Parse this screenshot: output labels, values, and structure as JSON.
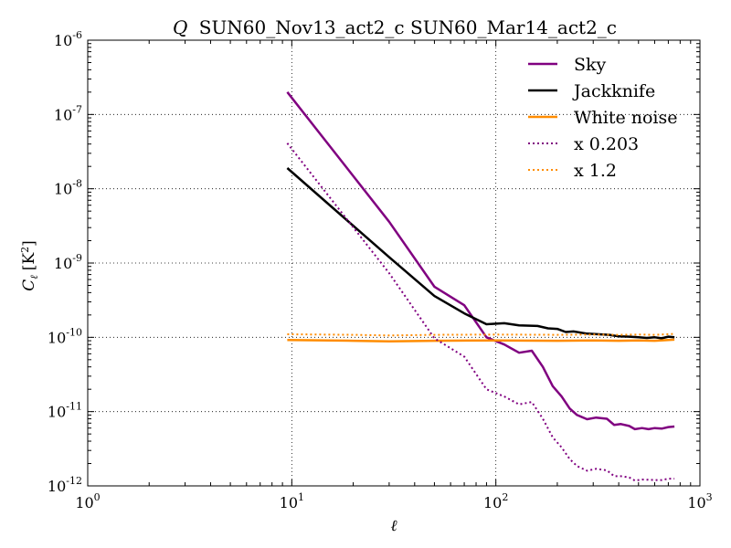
{
  "chart_data": {
    "type": "line",
    "title_symbol": "Q",
    "title_text": "SUN60_Nov13_act2_c SUN60_Mar14_act2_c",
    "xlabel": "ℓ",
    "ylabel_symbol": "C",
    "ylabel_sub": "ℓ",
    "ylabel_unit": "[K",
    "ylabel_unit_sup": "2",
    "ylabel_unit_close": "]",
    "xscale": "log",
    "yscale": "log",
    "xlim": [
      1,
      1000
    ],
    "ylim": [
      1e-12,
      1e-06
    ],
    "grid": true,
    "legend_position": "top-right",
    "x_ticks": [
      {
        "value": 1,
        "base": "10",
        "exp": "0"
      },
      {
        "value": 10,
        "base": "10",
        "exp": "1"
      },
      {
        "value": 100,
        "base": "10",
        "exp": "2"
      },
      {
        "value": 1000,
        "base": "10",
        "exp": "3"
      }
    ],
    "y_ticks": [
      {
        "value": 1e-12,
        "base": "10",
        "exp": "-12"
      },
      {
        "value": 1e-11,
        "base": "10",
        "exp": "-11"
      },
      {
        "value": 1e-10,
        "base": "10",
        "exp": "-10"
      },
      {
        "value": 1e-09,
        "base": "10",
        "exp": "-9"
      },
      {
        "value": 1e-08,
        "base": "10",
        "exp": "-8"
      },
      {
        "value": 1e-07,
        "base": "10",
        "exp": "-7"
      },
      {
        "value": 1e-06,
        "base": "10",
        "exp": "-6"
      }
    ],
    "series": [
      {
        "name": "Sky",
        "color": "#800080",
        "style": "solid",
        "points": [
          [
            9.5,
            2e-07
          ],
          [
            30,
            3.6e-09
          ],
          [
            50,
            4.8e-10
          ],
          [
            70,
            2.7e-10
          ],
          [
            90,
            1e-10
          ],
          [
            110,
            8e-11
          ],
          [
            130,
            6.2e-11
          ],
          [
            150,
            6.6e-11
          ],
          [
            170,
            4e-11
          ],
          [
            190,
            2.2e-11
          ],
          [
            210,
            1.6e-11
          ],
          [
            230,
            1.1e-11
          ],
          [
            250,
            9e-12
          ],
          [
            280,
            7.9e-12
          ],
          [
            310,
            8.3e-12
          ],
          [
            350,
            8e-12
          ],
          [
            380,
            6.6e-12
          ],
          [
            410,
            6.8e-12
          ],
          [
            450,
            6.4e-12
          ],
          [
            480,
            5.8e-12
          ],
          [
            520,
            6e-12
          ],
          [
            560,
            5.8e-12
          ],
          [
            600,
            6e-12
          ],
          [
            650,
            5.9e-12
          ],
          [
            700,
            6.2e-12
          ],
          [
            750,
            6.3e-12
          ]
        ]
      },
      {
        "name": "Jackknife",
        "color": "#000000",
        "style": "solid",
        "points": [
          [
            9.5,
            1.9e-08
          ],
          [
            30,
            1.2e-09
          ],
          [
            50,
            3.6e-10
          ],
          [
            70,
            2.1e-10
          ],
          [
            90,
            1.5e-10
          ],
          [
            110,
            1.55e-10
          ],
          [
            130,
            1.45e-10
          ],
          [
            160,
            1.42e-10
          ],
          [
            180,
            1.32e-10
          ],
          [
            200,
            1.3e-10
          ],
          [
            220,
            1.18e-10
          ],
          [
            240,
            1.2e-10
          ],
          [
            280,
            1.12e-10
          ],
          [
            320,
            1.1e-10
          ],
          [
            360,
            1.08e-10
          ],
          [
            400,
            1.03e-10
          ],
          [
            450,
            1.02e-10
          ],
          [
            500,
            1e-10
          ],
          [
            550,
            9.8e-11
          ],
          [
            600,
            1e-10
          ],
          [
            650,
            9.7e-11
          ],
          [
            700,
            1.02e-10
          ],
          [
            750,
            1e-10
          ]
        ]
      },
      {
        "name": "White noise",
        "color": "#ff8c00",
        "style": "solid",
        "points": [
          [
            9.5,
            9.2e-11
          ],
          [
            20,
            9e-11
          ],
          [
            30,
            8.8e-11
          ],
          [
            50,
            9e-11
          ],
          [
            100,
            9.1e-11
          ],
          [
            200,
            9e-11
          ],
          [
            300,
            9.1e-11
          ],
          [
            400,
            9e-11
          ],
          [
            500,
            9.1e-11
          ],
          [
            600,
            9e-11
          ],
          [
            750,
            9.3e-11
          ]
        ]
      },
      {
        "name": "x 0.203",
        "color": "#800080",
        "style": "dotted",
        "points": [
          [
            9.5,
            4.1e-08
          ],
          [
            30,
            7.3e-10
          ],
          [
            50,
            9.7e-11
          ],
          [
            70,
            5.5e-11
          ],
          [
            90,
            2e-11
          ],
          [
            110,
            1.6e-11
          ],
          [
            130,
            1.25e-11
          ],
          [
            150,
            1.35e-11
          ],
          [
            170,
            8e-12
          ],
          [
            190,
            4.5e-12
          ],
          [
            210,
            3.3e-12
          ],
          [
            230,
            2.3e-12
          ],
          [
            250,
            1.85e-12
          ],
          [
            280,
            1.6e-12
          ],
          [
            310,
            1.7e-12
          ],
          [
            350,
            1.62e-12
          ],
          [
            380,
            1.35e-12
          ],
          [
            410,
            1.35e-12
          ],
          [
            450,
            1.3e-12
          ],
          [
            480,
            1.18e-12
          ],
          [
            520,
            1.22e-12
          ],
          [
            600,
            1.2e-12
          ],
          [
            650,
            1.2e-12
          ],
          [
            700,
            1.25e-12
          ],
          [
            750,
            1.25e-12
          ]
        ]
      },
      {
        "name": "x 1.2",
        "color": "#ff8c00",
        "style": "dotted",
        "points": [
          [
            9.5,
            1.1e-10
          ],
          [
            20,
            1.08e-10
          ],
          [
            30,
            1.06e-10
          ],
          [
            50,
            1.08e-10
          ],
          [
            100,
            1.09e-10
          ],
          [
            200,
            1.08e-10
          ],
          [
            300,
            1.09e-10
          ],
          [
            400,
            1.08e-10
          ],
          [
            500,
            1.09e-10
          ],
          [
            600,
            1.08e-10
          ],
          [
            750,
            1.11e-10
          ]
        ]
      }
    ]
  }
}
